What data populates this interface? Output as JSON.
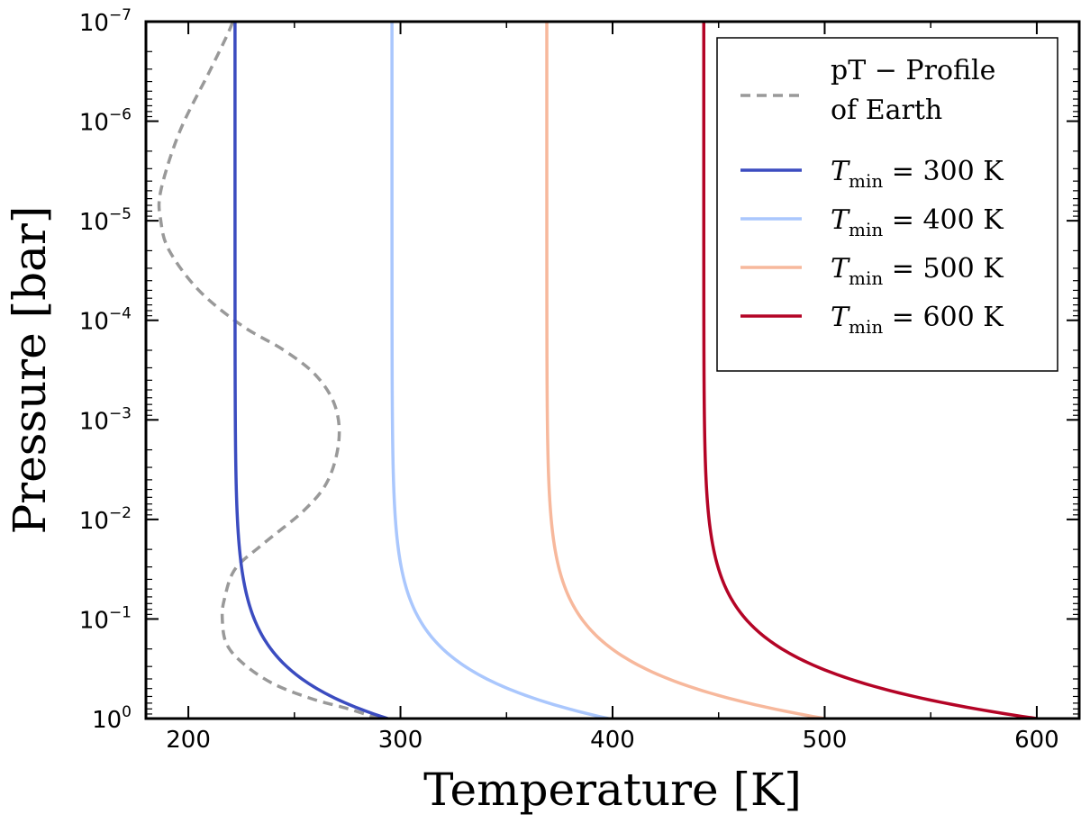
{
  "chart_data": {
    "type": "line",
    "xlabel": "Temperature [K]",
    "ylabel": "Pressure [bar]",
    "xlim": [
      180,
      620
    ],
    "ylim_log10": [
      0,
      -7
    ],
    "y_scale": "log",
    "y_inverted": true,
    "x_ticks": [
      200,
      300,
      400,
      500,
      600
    ],
    "y_ticks": [
      {
        "base": "10",
        "exp": "−7"
      },
      {
        "base": "10",
        "exp": "−6"
      },
      {
        "base": "10",
        "exp": "−5"
      },
      {
        "base": "10",
        "exp": "−4"
      },
      {
        "base": "10",
        "exp": "−3"
      },
      {
        "base": "10",
        "exp": "−2"
      },
      {
        "base": "10",
        "exp": "−1"
      },
      {
        "base": "10",
        "exp": "0"
      }
    ],
    "legend_position": "top-right",
    "series": [
      {
        "name": "pT − Profile of Earth",
        "name_lines": [
          "pT − Profile",
          "of Earth"
        ],
        "color": "#999999",
        "style": "dashed",
        "points": [
          [
            290,
            0.0
          ],
          [
            275,
            -0.1
          ],
          [
            258,
            -0.2
          ],
          [
            240,
            -0.35
          ],
          [
            226,
            -0.55
          ],
          [
            218,
            -0.75
          ],
          [
            216,
            -1.0
          ],
          [
            217,
            -1.2
          ],
          [
            222,
            -1.5
          ],
          [
            235,
            -1.75
          ],
          [
            255,
            -2.1
          ],
          [
            266,
            -2.4
          ],
          [
            271,
            -2.8
          ],
          [
            269,
            -3.15
          ],
          [
            260,
            -3.45
          ],
          [
            245,
            -3.7
          ],
          [
            225,
            -3.95
          ],
          [
            205,
            -4.3
          ],
          [
            191,
            -4.7
          ],
          [
            187,
            -5.0
          ],
          [
            187,
            -5.3
          ],
          [
            196,
            -5.9
          ],
          [
            210,
            -6.5
          ],
          [
            218,
            -6.85
          ],
          [
            221,
            -7.0
          ]
        ]
      },
      {
        "name": "T_min = 300 K",
        "label_T": "T",
        "label_sub": "min",
        "label_rest": " = 300 K",
        "color": "#3b4cc0",
        "style": "solid",
        "T_top": 222,
        "T_bottom": 294
      },
      {
        "name": "T_min = 400 K",
        "label_T": "T",
        "label_sub": "min",
        "label_rest": " = 400 K",
        "color": "#aac7fd",
        "style": "solid",
        "T_top": 296,
        "T_bottom": 398
      },
      {
        "name": "T_min = 500 K",
        "label_T": "T",
        "label_sub": "min",
        "label_rest": " = 500 K",
        "color": "#f7b89c",
        "style": "solid",
        "T_top": 369,
        "T_bottom": 500
      },
      {
        "name": "T_min = 600 K",
        "label_T": "T",
        "label_sub": "min",
        "label_rest": " = 600 K",
        "color": "#b40426",
        "style": "solid",
        "T_top": 443,
        "T_bottom": 600
      }
    ]
  }
}
